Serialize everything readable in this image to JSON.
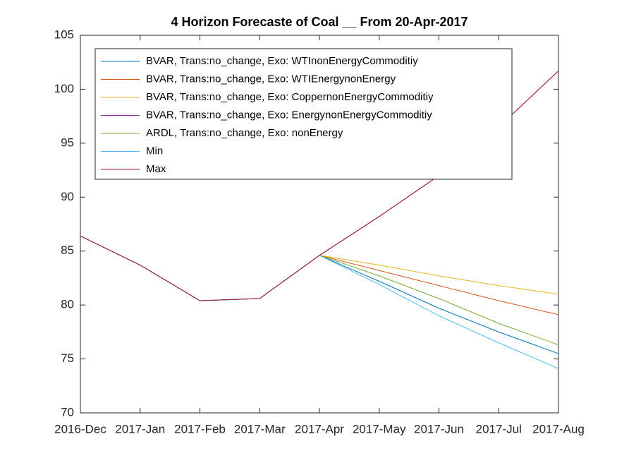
{
  "chart_data": {
    "type": "line",
    "title": "4 Horizon Forecaste of Coal __ From 20-Apr-2017",
    "categories": [
      "2016-Dec",
      "2017-Jan",
      "2017-Feb",
      "2017-Mar",
      "2017-Apr",
      "2017-May",
      "2017-Jun",
      "2017-Jul",
      "2017-Aug"
    ],
    "series": [
      {
        "name": "BVAR, Trans:no_change, Exo: WTInonEnergyCommoditiy",
        "color": "#0072BD",
        "values": [
          86.4,
          83.7,
          80.4,
          80.6,
          84.6,
          82.2,
          79.7,
          77.5,
          75.5
        ]
      },
      {
        "name": "BVAR, Trans:no_change, Exo: WTIEnergynonEnergy",
        "color": "#D95319",
        "values": [
          86.4,
          83.7,
          80.4,
          80.6,
          84.6,
          83.2,
          81.8,
          80.4,
          79.1
        ]
      },
      {
        "name": "BVAR, Trans:no_change, Exo: CoppernonEnergyCommoditiy",
        "color": "#EDB120",
        "values": [
          86.4,
          83.7,
          80.4,
          80.6,
          84.6,
          83.7,
          82.7,
          81.8,
          81.0
        ]
      },
      {
        "name": "BVAR, Trans:no_change, Exo: EnergynonEnergyCommoditiy",
        "color": "#7E2F8E",
        "values": [
          86.4,
          83.7,
          80.4,
          80.6,
          84.6,
          88.2,
          92.0,
          96.5,
          101.7
        ]
      },
      {
        "name": "ARDL, Trans:no_change, Exo: nonEnergy",
        "color": "#77AC30",
        "values": [
          86.4,
          83.7,
          80.4,
          80.6,
          84.6,
          82.7,
          80.6,
          78.3,
          76.3
        ]
      },
      {
        "name": "Min",
        "color": "#4DBEEE",
        "values": [
          86.4,
          83.7,
          80.4,
          80.6,
          84.6,
          81.9,
          79.0,
          76.5,
          74.1
        ]
      },
      {
        "name": "Max",
        "color": "#A2142F",
        "values": [
          86.4,
          83.7,
          80.4,
          80.6,
          84.6,
          88.2,
          92.0,
          96.5,
          101.7
        ]
      }
    ],
    "ylim": [
      70,
      105
    ],
    "yticks": [
      70,
      75,
      80,
      85,
      90,
      95,
      100,
      105
    ],
    "legend": "northwest"
  }
}
